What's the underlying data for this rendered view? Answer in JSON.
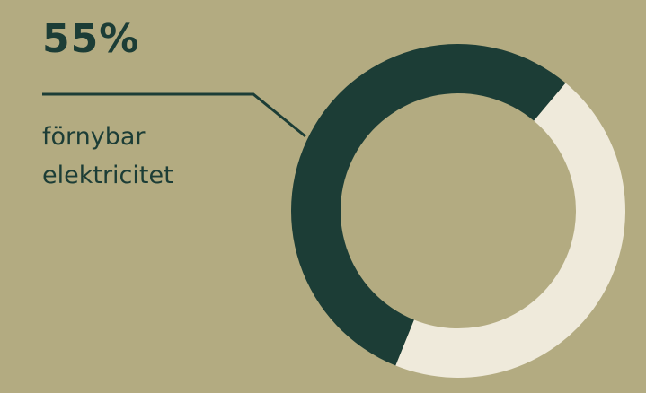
{
  "chart_data": {
    "type": "pie",
    "variant": "donut",
    "slices": [
      {
        "label": "förnybar elektricitet",
        "value": 55,
        "color": "#1c3d36"
      },
      {
        "value": 45,
        "color": "#efeadb"
      }
    ],
    "annotation": {
      "value_text": "55%",
      "label_lines": [
        "förnybar",
        "elektricitet"
      ]
    }
  },
  "colors": {
    "background": "#b3ab81",
    "text": "#1c3d36"
  }
}
